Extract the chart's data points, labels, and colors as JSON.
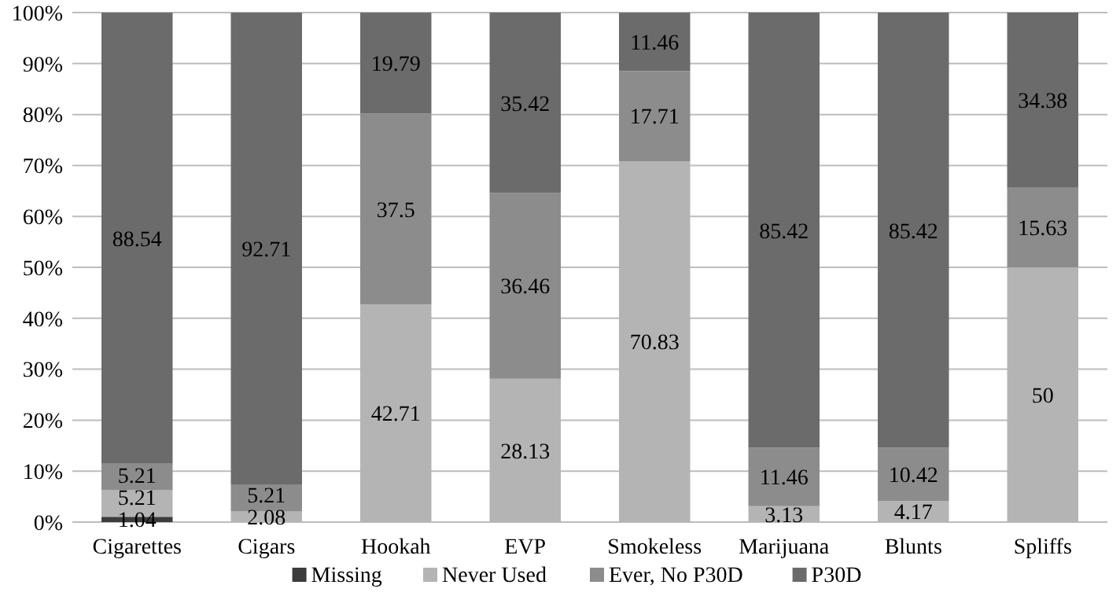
{
  "chart_data": {
    "type": "bar",
    "stacked": true,
    "data_labels": true,
    "grid": "y",
    "legend": "bottom",
    "categories": [
      "Cigarettes",
      "Cigars",
      "Hookah",
      "EVP",
      "Smokeless",
      "Marijuana",
      "Blunts",
      "Spliffs"
    ],
    "ylim": [
      0,
      100.01
    ],
    "yticks": [
      {
        "value": 0,
        "label": "0%"
      },
      {
        "value": 10,
        "label": "10%"
      },
      {
        "value": 20,
        "label": "20%"
      },
      {
        "value": 30,
        "label": "30%"
      },
      {
        "value": 40,
        "label": "40%"
      },
      {
        "value": 50,
        "label": "50%"
      },
      {
        "value": 60,
        "label": "60%"
      },
      {
        "value": 70,
        "label": "70%"
      },
      {
        "value": 80,
        "label": "80%"
      },
      {
        "value": 90,
        "label": "90%"
      },
      {
        "value": 100,
        "label": "100%"
      }
    ],
    "series": [
      {
        "name": "Missing",
        "color": "#3c3c3c",
        "values": [
          1.04,
          null,
          null,
          null,
          null,
          null,
          null,
          null
        ]
      },
      {
        "name": "Never Used",
        "color": "#b4b4b4",
        "values": [
          5.21,
          2.08,
          42.71,
          28.13,
          70.83,
          3.13,
          4.17,
          50
        ]
      },
      {
        "name": "Ever, No P30D",
        "color": "#8c8c8c",
        "values": [
          5.21,
          5.21,
          37.5,
          36.46,
          17.71,
          11.46,
          10.42,
          15.63
        ]
      },
      {
        "name": "P30D",
        "color": "#6b6b6b",
        "values": [
          88.54,
          92.71,
          19.79,
          35.42,
          11.46,
          85.42,
          85.42,
          34.38
        ]
      }
    ]
  }
}
